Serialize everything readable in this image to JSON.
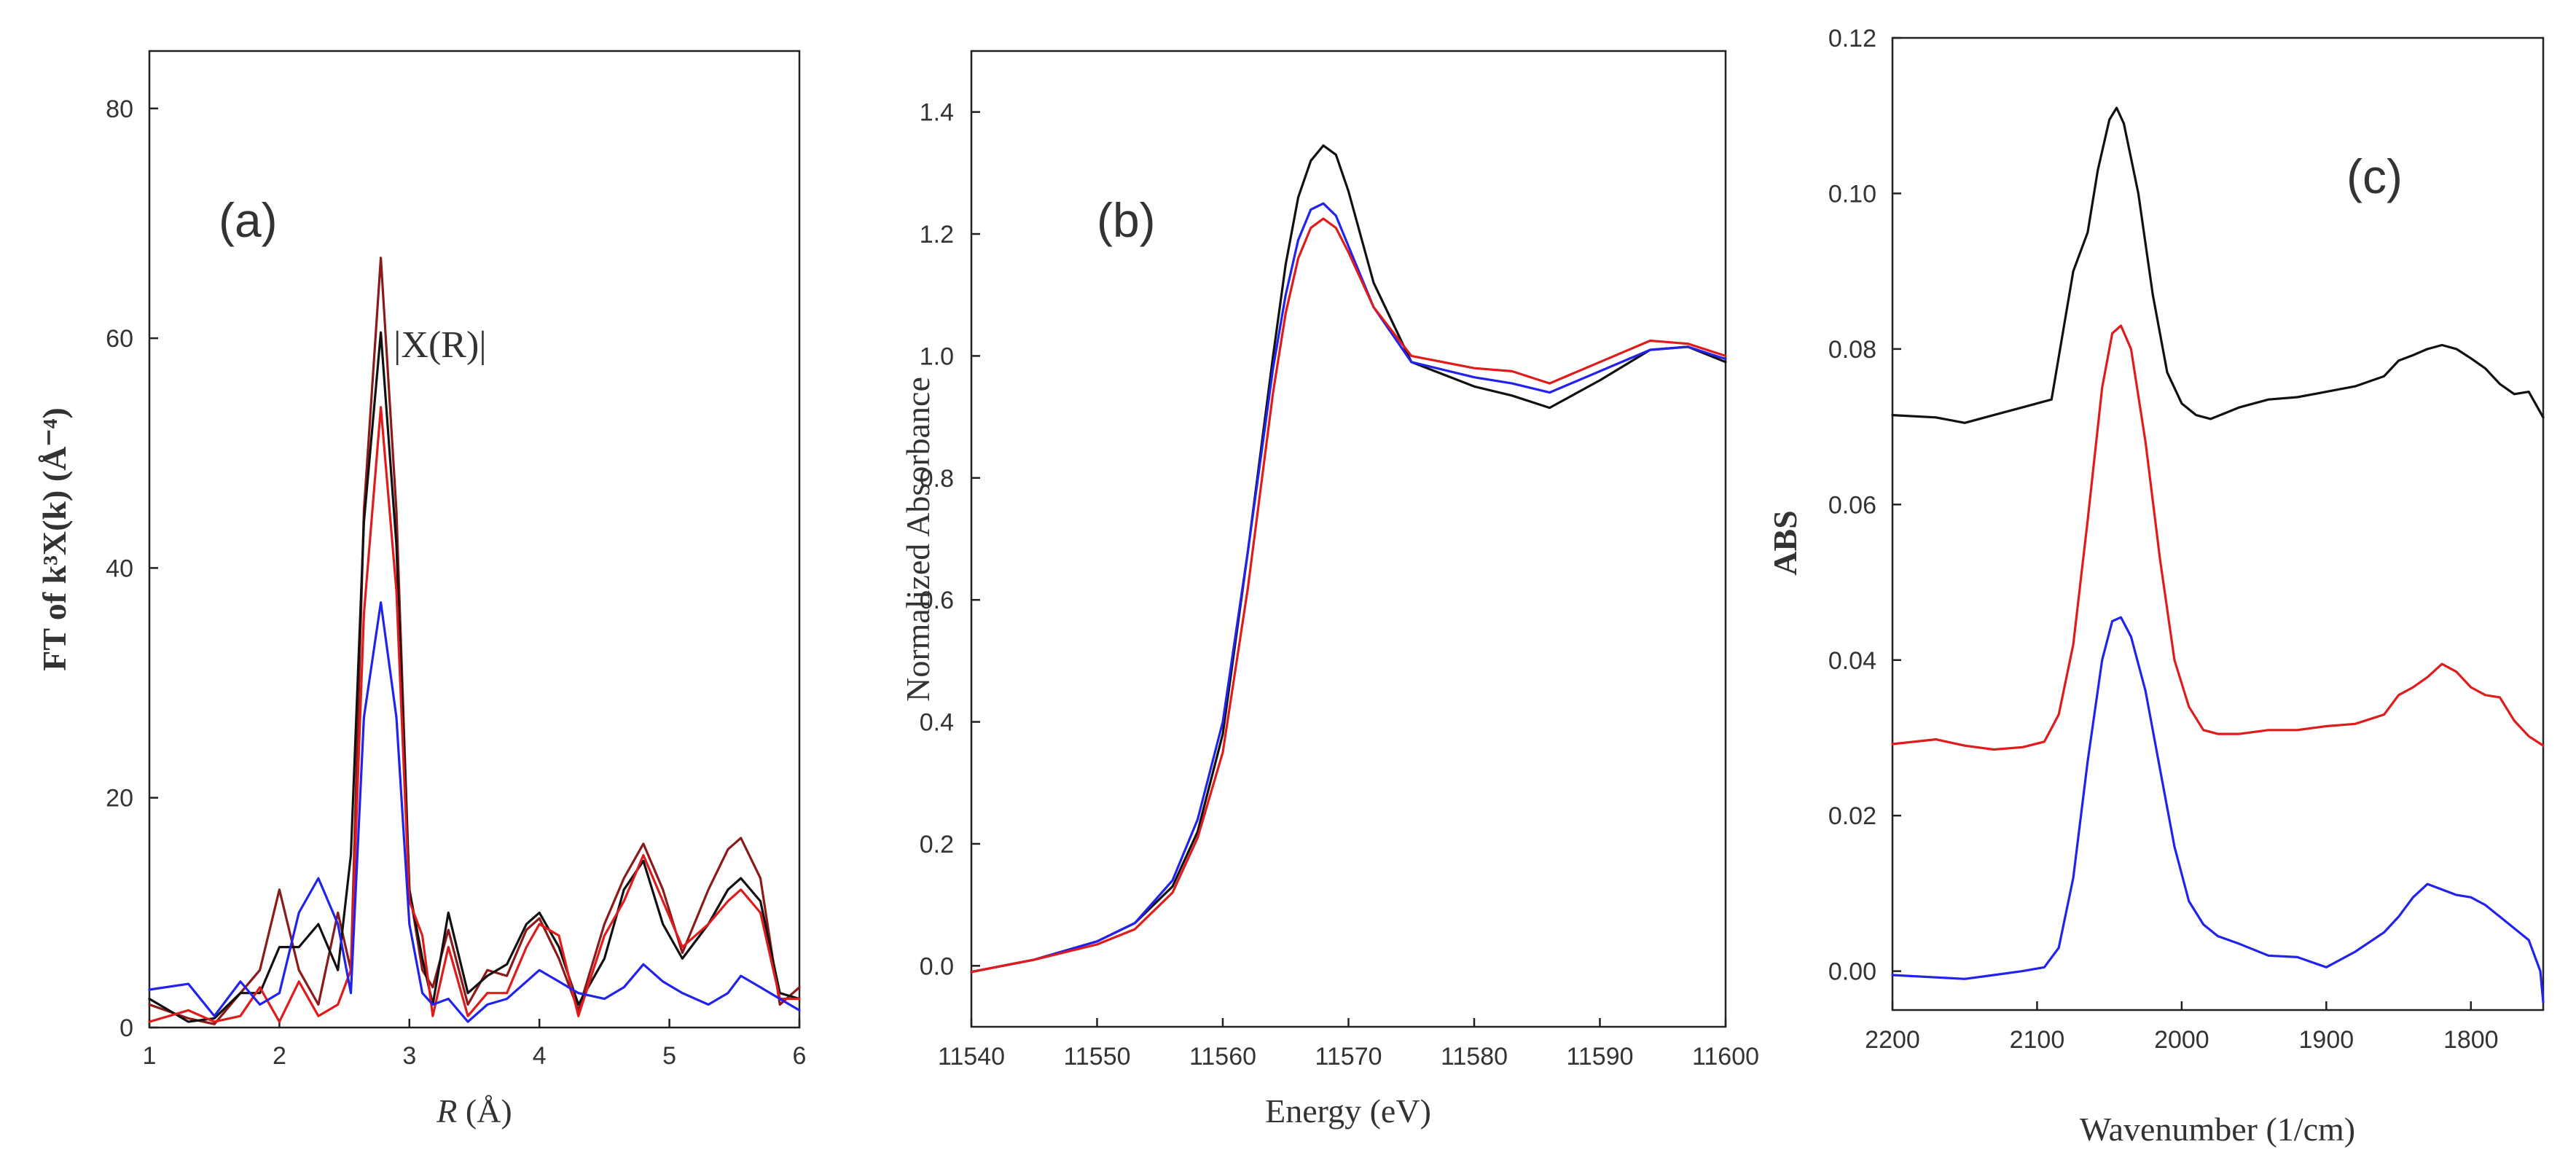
{
  "chart_data": [
    {
      "panel_label": "(a)",
      "type": "line",
      "xlabel_italic": "R",
      "xlabel_rest": " (Å)",
      "ylabel": "FT of k³Χ(k) (Å⁻⁴)",
      "annotation": "|Χ(R)|",
      "xlim": [
        1,
        6
      ],
      "ylim": [
        0,
        85
      ],
      "xticks": [
        1,
        2,
        3,
        4,
        5,
        6
      ],
      "xtick_labels": [
        "1",
        "2",
        "3",
        "4",
        "5",
        "6"
      ],
      "yticks": [
        0,
        20,
        40,
        60,
        80
      ],
      "ytick_labels": [
        "0",
        "20",
        "40",
        "60",
        "80"
      ],
      "series": [
        {
          "name": "dark-red",
          "color": "#8b1a1a",
          "x": [
            1.0,
            1.3,
            1.5,
            1.7,
            1.85,
            2.0,
            2.15,
            2.3,
            2.45,
            2.55,
            2.65,
            2.78,
            2.9,
            3.0,
            3.1,
            3.18,
            3.3,
            3.45,
            3.6,
            3.75,
            3.9,
            4.0,
            4.15,
            4.3,
            4.5,
            4.65,
            4.8,
            4.95,
            5.1,
            5.3,
            5.45,
            5.55,
            5.7,
            5.85,
            6.0
          ],
          "y": [
            2,
            0.8,
            0.3,
            3,
            5,
            12,
            5,
            2,
            10,
            5,
            45,
            67,
            45,
            12,
            5,
            3.5,
            8.5,
            2,
            5,
            4.5,
            8.5,
            9.5,
            6,
            1.5,
            9,
            13,
            16,
            12,
            6.5,
            12,
            15.5,
            16.5,
            13,
            2,
            3.5
          ]
        },
        {
          "name": "black",
          "color": "#111111",
          "x": [
            1.0,
            1.3,
            1.5,
            1.7,
            1.85,
            2.0,
            2.15,
            2.3,
            2.45,
            2.55,
            2.65,
            2.78,
            2.9,
            3.0,
            3.1,
            3.18,
            3.3,
            3.45,
            3.6,
            3.75,
            3.9,
            4.0,
            4.15,
            4.3,
            4.5,
            4.65,
            4.8,
            4.95,
            5.1,
            5.3,
            5.45,
            5.55,
            5.7,
            5.85,
            6.0
          ],
          "y": [
            2.5,
            0.5,
            0.8,
            3,
            3,
            7,
            7,
            9,
            5,
            15,
            44,
            60.5,
            42,
            12,
            6,
            2,
            10,
            3,
            4.5,
            5.5,
            9,
            10,
            7,
            2,
            6,
            12,
            14.5,
            9,
            6,
            9,
            12,
            13,
            11,
            3,
            2.5
          ]
        },
        {
          "name": "red",
          "color": "#e01b1b",
          "x": [
            1.0,
            1.3,
            1.5,
            1.7,
            1.85,
            2.0,
            2.15,
            2.3,
            2.45,
            2.55,
            2.65,
            2.78,
            2.9,
            3.0,
            3.1,
            3.18,
            3.3,
            3.45,
            3.6,
            3.75,
            3.9,
            4.0,
            4.15,
            4.3,
            4.5,
            4.65,
            4.8,
            4.95,
            5.1,
            5.3,
            5.45,
            5.55,
            5.7,
            5.85,
            6.0
          ],
          "y": [
            0.5,
            1.5,
            0.5,
            1,
            3.5,
            0.5,
            4,
            1,
            2,
            5,
            36,
            54,
            38,
            11,
            8,
            1,
            7,
            1,
            3,
            3,
            7,
            9,
            8,
            1,
            8,
            11,
            15,
            11,
            7,
            9,
            11,
            12,
            10,
            2.5,
            2.5
          ]
        },
        {
          "name": "blue",
          "color": "#2222ee",
          "x": [
            1.0,
            1.3,
            1.5,
            1.7,
            1.85,
            2.0,
            2.15,
            2.3,
            2.45,
            2.55,
            2.65,
            2.78,
            2.9,
            3.0,
            3.1,
            3.18,
            3.3,
            3.45,
            3.6,
            3.75,
            3.9,
            4.0,
            4.15,
            4.3,
            4.5,
            4.65,
            4.8,
            4.95,
            5.1,
            5.3,
            5.45,
            5.55,
            5.7,
            5.85,
            6.0
          ],
          "y": [
            3.3,
            3.8,
            1,
            4,
            2,
            3,
            10,
            13,
            9,
            3,
            27,
            37,
            27,
            9,
            3,
            2,
            2.5,
            0.5,
            2,
            2.5,
            4,
            5,
            4,
            3,
            2.5,
            3.5,
            5.5,
            4,
            3,
            2,
            3,
            4.5,
            3.5,
            2.5,
            1.5
          ]
        }
      ]
    },
    {
      "panel_label": "(b)",
      "type": "line",
      "xlabel": "Energy (eV)",
      "ylabel": "Normalized Absorbance",
      "xlim": [
        11540,
        11600
      ],
      "ylim": [
        -0.1,
        1.5
      ],
      "xticks": [
        11540,
        11550,
        11560,
        11570,
        11580,
        11590,
        11600
      ],
      "xtick_labels": [
        "11540",
        "11550",
        "11560",
        "11570",
        "11580",
        "11590",
        "11600"
      ],
      "yticks": [
        0.0,
        0.2,
        0.4,
        0.6,
        0.8,
        1.0,
        1.2,
        1.4
      ],
      "ytick_labels": [
        "0.0",
        "0.2",
        "0.4",
        "0.6",
        "0.8",
        "1.0",
        "1.2",
        "1.4"
      ],
      "series": [
        {
          "name": "black",
          "color": "#111111",
          "x": [
            11540,
            11545,
            11550,
            11553,
            11556,
            11558,
            11560,
            11562,
            11564,
            11565,
            11566,
            11567,
            11568,
            11569,
            11570,
            11572,
            11575,
            11580,
            11583,
            11586,
            11590,
            11594,
            11597,
            11600
          ],
          "y": [
            -0.01,
            0.01,
            0.04,
            0.07,
            0.13,
            0.22,
            0.38,
            0.68,
            1.0,
            1.15,
            1.26,
            1.32,
            1.345,
            1.33,
            1.27,
            1.12,
            0.99,
            0.95,
            0.935,
            0.915,
            0.96,
            1.01,
            1.015,
            0.99
          ]
        },
        {
          "name": "blue",
          "color": "#2222ee",
          "x": [
            11540,
            11545,
            11550,
            11553,
            11556,
            11558,
            11560,
            11562,
            11564,
            11565,
            11566,
            11567,
            11568,
            11569,
            11570,
            11572,
            11575,
            11580,
            11583,
            11586,
            11590,
            11594,
            11597,
            11600
          ],
          "y": [
            -0.01,
            0.01,
            0.04,
            0.07,
            0.14,
            0.24,
            0.4,
            0.68,
            0.98,
            1.1,
            1.19,
            1.24,
            1.25,
            1.23,
            1.18,
            1.08,
            0.99,
            0.965,
            0.955,
            0.94,
            0.975,
            1.01,
            1.015,
            0.995
          ]
        },
        {
          "name": "red",
          "color": "#e01b1b",
          "x": [
            11540,
            11545,
            11550,
            11553,
            11556,
            11558,
            11560,
            11562,
            11564,
            11565,
            11566,
            11567,
            11568,
            11569,
            11570,
            11572,
            11575,
            11580,
            11583,
            11586,
            11590,
            11594,
            11597,
            11600
          ],
          "y": [
            -0.01,
            0.01,
            0.035,
            0.06,
            0.12,
            0.21,
            0.35,
            0.62,
            0.94,
            1.07,
            1.16,
            1.21,
            1.225,
            1.21,
            1.17,
            1.08,
            1.0,
            0.98,
            0.975,
            0.955,
            0.99,
            1.025,
            1.02,
            1.0
          ]
        }
      ]
    },
    {
      "panel_label": "(c)",
      "type": "line",
      "xlabel": "Wavenumber (1/cm)",
      "ylabel": "ABS",
      "xlim": [
        2200,
        1750
      ],
      "ylim": [
        -0.005,
        0.12
      ],
      "xticks": [
        2200,
        2100,
        2000,
        1900,
        1800
      ],
      "xtick_labels": [
        "2200",
        "2100",
        "2000",
        "1900",
        "1800"
      ],
      "yticks": [
        0.0,
        0.02,
        0.04,
        0.06,
        0.08,
        0.1,
        0.12
      ],
      "ytick_labels": [
        "0.00",
        "0.02",
        "0.04",
        "0.06",
        "0.08",
        "0.10",
        "0.12"
      ],
      "series": [
        {
          "name": "black",
          "color": "#111111",
          "x": [
            2200,
            2170,
            2150,
            2130,
            2110,
            2090,
            2075,
            2065,
            2058,
            2050,
            2045,
            2040,
            2030,
            2020,
            2010,
            2000,
            1990,
            1980,
            1960,
            1940,
            1920,
            1900,
            1880,
            1860,
            1850,
            1840,
            1830,
            1820,
            1810,
            1800,
            1790,
            1780,
            1770,
            1760,
            1750
          ],
          "y": [
            0.0715,
            0.0712,
            0.0705,
            0.0715,
            0.0725,
            0.0735,
            0.09,
            0.095,
            0.103,
            0.1095,
            0.111,
            0.109,
            0.1,
            0.087,
            0.077,
            0.073,
            0.0715,
            0.071,
            0.0725,
            0.0735,
            0.0738,
            0.0745,
            0.0752,
            0.0765,
            0.0785,
            0.0792,
            0.08,
            0.0805,
            0.08,
            0.0788,
            0.0775,
            0.0755,
            0.0742,
            0.0745,
            0.0712
          ]
        },
        {
          "name": "red",
          "color": "#e01b1b",
          "x": [
            2200,
            2170,
            2150,
            2130,
            2110,
            2095,
            2085,
            2075,
            2065,
            2055,
            2048,
            2042,
            2035,
            2025,
            2015,
            2005,
            1995,
            1985,
            1975,
            1960,
            1940,
            1920,
            1900,
            1880,
            1860,
            1850,
            1840,
            1830,
            1820,
            1810,
            1800,
            1790,
            1780,
            1770,
            1760,
            1750
          ],
          "y": [
            0.0292,
            0.0298,
            0.029,
            0.0285,
            0.0288,
            0.0295,
            0.033,
            0.042,
            0.058,
            0.075,
            0.082,
            0.083,
            0.08,
            0.068,
            0.053,
            0.04,
            0.034,
            0.031,
            0.0305,
            0.0305,
            0.031,
            0.031,
            0.0315,
            0.0318,
            0.033,
            0.0355,
            0.0365,
            0.0378,
            0.0395,
            0.0385,
            0.0365,
            0.0355,
            0.0352,
            0.0322,
            0.0302,
            0.029
          ]
        },
        {
          "name": "blue",
          "color": "#2222ee",
          "x": [
            2200,
            2170,
            2150,
            2130,
            2110,
            2095,
            2085,
            2075,
            2065,
            2055,
            2048,
            2042,
            2035,
            2025,
            2015,
            2005,
            1995,
            1985,
            1975,
            1960,
            1940,
            1920,
            1900,
            1880,
            1860,
            1850,
            1840,
            1830,
            1820,
            1810,
            1800,
            1790,
            1780,
            1770,
            1760,
            1752,
            1750
          ],
          "y": [
            -0.0005,
            -0.0008,
            -0.001,
            -0.0005,
            0.0,
            0.0005,
            0.003,
            0.012,
            0.027,
            0.04,
            0.045,
            0.0455,
            0.043,
            0.036,
            0.026,
            0.016,
            0.009,
            0.006,
            0.0045,
            0.0035,
            0.002,
            0.0018,
            0.0005,
            0.0025,
            0.005,
            0.007,
            0.0095,
            0.0112,
            0.0105,
            0.0098,
            0.0095,
            0.0085,
            0.007,
            0.0055,
            0.004,
            0.0,
            -0.004
          ]
        }
      ]
    }
  ]
}
